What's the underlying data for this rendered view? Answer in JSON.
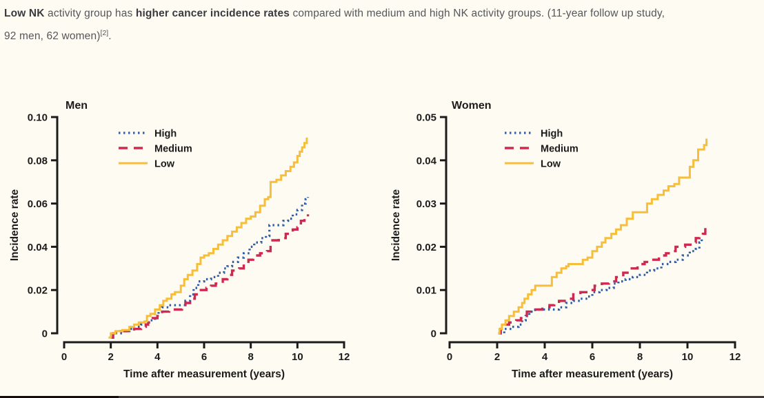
{
  "header": {
    "lines": [
      [
        {
          "text": "Low NK",
          "bold": true
        },
        {
          "text": " activity group has ",
          "bold": false
        },
        {
          "text": "higher cancer incidence rates",
          "bold": true
        },
        {
          "text": " compared with medium and high NK activity groups. (11-year follow up study,",
          "bold": false
        }
      ],
      [
        {
          "text": "92 men, 62 women)",
          "bold": false
        },
        {
          "text": "[2]",
          "bold": false,
          "sup": true
        },
        {
          "text": ".",
          "bold": false
        }
      ]
    ]
  },
  "colors": {
    "high": "#2F5DA8",
    "medium": "#CE2950",
    "low": "#F6BE3A",
    "axis": "#1B1B1B",
    "caption_text": "#56565B",
    "caption_bold": "#3A3A40",
    "background": "#FDFBF2"
  },
  "chart_data": [
    {
      "type": "line",
      "step": true,
      "title": "Men",
      "xlabel": "Time after measurement (years)",
      "ylabel": "Incidence rate",
      "xlim": [
        0,
        12
      ],
      "ylim": [
        0,
        0.1
      ],
      "xticks": [
        0,
        2,
        4,
        6,
        8,
        10,
        12
      ],
      "yticks": [
        {
          "v": 0,
          "label": "0"
        },
        {
          "v": 0.02,
          "label": "0.02"
        },
        {
          "v": 0.04,
          "label": "0.04"
        },
        {
          "v": 0.06,
          "label": "0.06"
        },
        {
          "v": 0.08,
          "label": "0.08"
        },
        {
          "v": 0.1,
          "label": "0.10"
        }
      ],
      "legend_position": "upper-left-inside",
      "series": [
        {
          "name": "High",
          "style": "dotted",
          "color_key": "high",
          "points": [
            [
              2.2,
              0
            ],
            [
              2.5,
              0.001
            ],
            [
              2.8,
              0.002
            ],
            [
              3.0,
              0.003
            ],
            [
              3.3,
              0.004
            ],
            [
              3.5,
              0.005
            ],
            [
              3.7,
              0.006
            ],
            [
              3.9,
              0.009
            ],
            [
              4.05,
              0.01
            ],
            [
              4.2,
              0.012
            ],
            [
              4.5,
              0.013
            ],
            [
              5.0,
              0.013
            ],
            [
              5.2,
              0.015
            ],
            [
              5.4,
              0.018
            ],
            [
              5.55,
              0.021
            ],
            [
              5.75,
              0.024
            ],
            [
              6.0,
              0.025
            ],
            [
              6.3,
              0.026
            ],
            [
              6.6,
              0.028
            ],
            [
              6.85,
              0.03
            ],
            [
              7.0,
              0.031
            ],
            [
              7.2,
              0.033
            ],
            [
              7.45,
              0.035
            ],
            [
              7.7,
              0.037
            ],
            [
              7.95,
              0.04
            ],
            [
              8.15,
              0.042
            ],
            [
              8.45,
              0.044
            ],
            [
              8.65,
              0.045
            ],
            [
              8.8,
              0.05
            ],
            [
              9.2,
              0.05
            ],
            [
              9.4,
              0.052
            ],
            [
              9.6,
              0.053
            ],
            [
              9.8,
              0.055
            ],
            [
              10.0,
              0.057
            ],
            [
              10.2,
              0.06
            ],
            [
              10.35,
              0.062
            ],
            [
              10.45,
              0.063
            ]
          ]
        },
        {
          "name": "Medium",
          "style": "dashed",
          "color_key": "medium",
          "points": [
            [
              2.0,
              -0.002
            ],
            [
              2.1,
              0
            ],
            [
              2.4,
              0.001
            ],
            [
              2.8,
              0.001
            ],
            [
              3.0,
              0.002
            ],
            [
              3.3,
              0.003
            ],
            [
              3.5,
              0.004
            ],
            [
              3.6,
              0.005
            ],
            [
              3.8,
              0.007
            ],
            [
              4.0,
              0.008
            ],
            [
              4.2,
              0.01
            ],
            [
              4.5,
              0.011
            ],
            [
              4.9,
              0.011
            ],
            [
              5.05,
              0.012
            ],
            [
              5.2,
              0.014
            ],
            [
              5.4,
              0.016
            ],
            [
              5.6,
              0.018
            ],
            [
              5.8,
              0.02
            ],
            [
              6.1,
              0.021
            ],
            [
              6.3,
              0.022
            ],
            [
              6.5,
              0.023
            ],
            [
              6.8,
              0.025
            ],
            [
              7.0,
              0.027
            ],
            [
              7.2,
              0.029
            ],
            [
              7.5,
              0.03
            ],
            [
              7.7,
              0.032
            ],
            [
              7.9,
              0.034
            ],
            [
              8.1,
              0.036
            ],
            [
              8.4,
              0.037
            ],
            [
              8.7,
              0.038
            ],
            [
              8.85,
              0.043
            ],
            [
              9.2,
              0.044
            ],
            [
              9.5,
              0.046
            ],
            [
              9.8,
              0.048
            ],
            [
              10.0,
              0.049
            ],
            [
              10.15,
              0.052
            ],
            [
              10.3,
              0.053
            ],
            [
              10.45,
              0.055
            ]
          ]
        },
        {
          "name": "Low",
          "style": "solid",
          "color_key": "low",
          "points": [
            [
              1.9,
              -0.002
            ],
            [
              2.0,
              0
            ],
            [
              2.2,
              0.001
            ],
            [
              2.5,
              0.0015
            ],
            [
              2.8,
              0.003
            ],
            [
              3.0,
              0.004
            ],
            [
              3.2,
              0.005
            ],
            [
              3.45,
              0.0055
            ],
            [
              3.55,
              0.008
            ],
            [
              3.7,
              0.009
            ],
            [
              3.9,
              0.011
            ],
            [
              4.1,
              0.013
            ],
            [
              4.25,
              0.015
            ],
            [
              4.4,
              0.016
            ],
            [
              4.6,
              0.018
            ],
            [
              4.75,
              0.019
            ],
            [
              5.0,
              0.022
            ],
            [
              5.15,
              0.025
            ],
            [
              5.3,
              0.027
            ],
            [
              5.5,
              0.029
            ],
            [
              5.7,
              0.032
            ],
            [
              5.85,
              0.035
            ],
            [
              6.0,
              0.036
            ],
            [
              6.2,
              0.037
            ],
            [
              6.4,
              0.039
            ],
            [
              6.6,
              0.041
            ],
            [
              6.8,
              0.043
            ],
            [
              7.0,
              0.045
            ],
            [
              7.2,
              0.047
            ],
            [
              7.4,
              0.049
            ],
            [
              7.6,
              0.051
            ],
            [
              7.8,
              0.053
            ],
            [
              8.0,
              0.054
            ],
            [
              8.2,
              0.056
            ],
            [
              8.4,
              0.059
            ],
            [
              8.6,
              0.062
            ],
            [
              8.75,
              0.063
            ],
            [
              8.85,
              0.07
            ],
            [
              9.1,
              0.071
            ],
            [
              9.3,
              0.073
            ],
            [
              9.5,
              0.075
            ],
            [
              9.7,
              0.077
            ],
            [
              9.85,
              0.079
            ],
            [
              10.0,
              0.082
            ],
            [
              10.1,
              0.084
            ],
            [
              10.2,
              0.086
            ],
            [
              10.3,
              0.088
            ],
            [
              10.4,
              0.0905
            ]
          ]
        }
      ]
    },
    {
      "type": "line",
      "step": true,
      "title": "Women",
      "xlabel": "Time after measurement (years)",
      "ylabel": "Incidence rate",
      "xlim": [
        0,
        12
      ],
      "ylim": [
        0,
        0.05
      ],
      "xticks": [
        0,
        2,
        4,
        6,
        8,
        10,
        12
      ],
      "yticks": [
        {
          "v": 0,
          "label": "0"
        },
        {
          "v": 0.01,
          "label": "0.01"
        },
        {
          "v": 0.02,
          "label": "0.02"
        },
        {
          "v": 0.03,
          "label": "0.03"
        },
        {
          "v": 0.04,
          "label": "0.04"
        },
        {
          "v": 0.05,
          "label": "0.05"
        }
      ],
      "legend_position": "upper-left-inside",
      "series": [
        {
          "name": "High",
          "style": "dotted",
          "color_key": "high",
          "points": [
            [
              2.1,
              0
            ],
            [
              2.3,
              0.001
            ],
            [
              2.6,
              0.0015
            ],
            [
              2.9,
              0.002
            ],
            [
              3.05,
              0.003
            ],
            [
              3.2,
              0.004
            ],
            [
              3.35,
              0.005
            ],
            [
              3.6,
              0.0055
            ],
            [
              4.3,
              0.0055
            ],
            [
              4.6,
              0.006
            ],
            [
              4.9,
              0.007
            ],
            [
              5.2,
              0.0075
            ],
            [
              5.5,
              0.008
            ],
            [
              5.8,
              0.0085
            ],
            [
              6.0,
              0.0095
            ],
            [
              6.3,
              0.01
            ],
            [
              6.6,
              0.0105
            ],
            [
              6.9,
              0.0115
            ],
            [
              7.1,
              0.012
            ],
            [
              7.4,
              0.0125
            ],
            [
              7.7,
              0.013
            ],
            [
              8.0,
              0.0135
            ],
            [
              8.3,
              0.0145
            ],
            [
              8.6,
              0.015
            ],
            [
              8.9,
              0.016
            ],
            [
              9.2,
              0.0165
            ],
            [
              9.5,
              0.017
            ],
            [
              9.8,
              0.018
            ],
            [
              10.1,
              0.019
            ],
            [
              10.35,
              0.0195
            ],
            [
              10.5,
              0.021
            ],
            [
              10.6,
              0.022
            ]
          ]
        },
        {
          "name": "Medium",
          "style": "dashed",
          "color_key": "medium",
          "points": [
            [
              2.05,
              0
            ],
            [
              2.15,
              0.001
            ],
            [
              2.3,
              0.002
            ],
            [
              2.5,
              0.0025
            ],
            [
              2.8,
              0.003
            ],
            [
              3.0,
              0.0035
            ],
            [
              3.1,
              0.004
            ],
            [
              3.25,
              0.005
            ],
            [
              3.5,
              0.0055
            ],
            [
              3.9,
              0.006
            ],
            [
              4.2,
              0.0065
            ],
            [
              4.4,
              0.007
            ],
            [
              4.6,
              0.0075
            ],
            [
              5.0,
              0.008
            ],
            [
              5.2,
              0.009
            ],
            [
              5.5,
              0.0095
            ],
            [
              5.9,
              0.01
            ],
            [
              6.1,
              0.011
            ],
            [
              6.4,
              0.0115
            ],
            [
              6.7,
              0.012
            ],
            [
              7.0,
              0.013
            ],
            [
              7.3,
              0.014
            ],
            [
              7.6,
              0.015
            ],
            [
              7.9,
              0.016
            ],
            [
              8.2,
              0.0165
            ],
            [
              8.5,
              0.017
            ],
            [
              8.8,
              0.018
            ],
            [
              9.1,
              0.0185
            ],
            [
              9.3,
              0.019
            ],
            [
              9.5,
              0.02
            ],
            [
              9.9,
              0.0205
            ],
            [
              10.2,
              0.021
            ],
            [
              10.35,
              0.022
            ],
            [
              10.5,
              0.0225
            ],
            [
              10.65,
              0.023
            ],
            [
              10.75,
              0.0245
            ]
          ]
        },
        {
          "name": "Low",
          "style": "solid",
          "color_key": "low",
          "points": [
            [
              2.05,
              0
            ],
            [
              2.1,
              0.001
            ],
            [
              2.2,
              0.002
            ],
            [
              2.35,
              0.003
            ],
            [
              2.5,
              0.004
            ],
            [
              2.7,
              0.005
            ],
            [
              2.9,
              0.006
            ],
            [
              3.05,
              0.007
            ],
            [
              3.15,
              0.008
            ],
            [
              3.3,
              0.009
            ],
            [
              3.45,
              0.01
            ],
            [
              3.6,
              0.011
            ],
            [
              4.2,
              0.011
            ],
            [
              4.3,
              0.013
            ],
            [
              4.5,
              0.014
            ],
            [
              4.7,
              0.015
            ],
            [
              4.9,
              0.0155
            ],
            [
              5.0,
              0.016
            ],
            [
              5.4,
              0.016
            ],
            [
              5.6,
              0.017
            ],
            [
              5.8,
              0.0175
            ],
            [
              6.0,
              0.019
            ],
            [
              6.2,
              0.02
            ],
            [
              6.4,
              0.021
            ],
            [
              6.55,
              0.022
            ],
            [
              6.8,
              0.023
            ],
            [
              7.0,
              0.024
            ],
            [
              7.2,
              0.025
            ],
            [
              7.45,
              0.0265
            ],
            [
              7.7,
              0.028
            ],
            [
              8.1,
              0.028
            ],
            [
              8.3,
              0.03
            ],
            [
              8.5,
              0.031
            ],
            [
              8.75,
              0.032
            ],
            [
              9.0,
              0.033
            ],
            [
              9.2,
              0.034
            ],
            [
              9.45,
              0.0345
            ],
            [
              9.65,
              0.036
            ],
            [
              10.0,
              0.036
            ],
            [
              10.1,
              0.0385
            ],
            [
              10.25,
              0.04
            ],
            [
              10.45,
              0.0425
            ],
            [
              10.65,
              0.0425
            ],
            [
              10.7,
              0.0435
            ],
            [
              10.8,
              0.045
            ]
          ]
        }
      ]
    }
  ]
}
